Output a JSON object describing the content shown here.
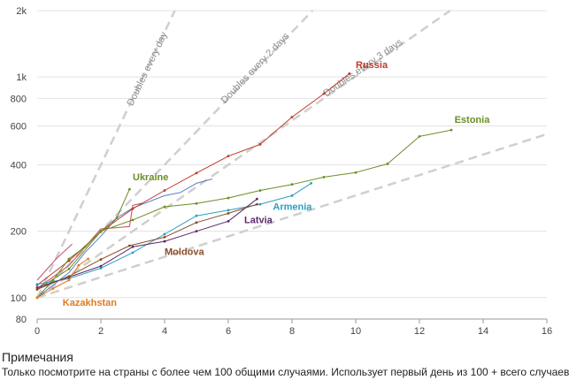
{
  "chart_data": {
    "type": "line",
    "y_scale": "log",
    "xlim": [
      0,
      16
    ],
    "ylim": [
      80,
      2000
    ],
    "x_ticks": [
      0,
      2,
      4,
      6,
      8,
      10,
      12,
      14,
      16
    ],
    "y_ticks": [
      {
        "value": 80,
        "label": "80"
      },
      {
        "value": 100,
        "label": "100"
      },
      {
        "value": 200,
        "label": "200"
      },
      {
        "value": 400,
        "label": "400"
      },
      {
        "value": 600,
        "label": "600"
      },
      {
        "value": 800,
        "label": "800"
      },
      {
        "value": 1000,
        "label": "1k"
      },
      {
        "value": 2000,
        "label": "2k"
      }
    ],
    "grid": "horizontal",
    "reference_lines": [
      {
        "label": "Doubles every day",
        "doubling_days": 1
      },
      {
        "label": "Doubles every 2 days",
        "doubling_days": 2
      },
      {
        "label": "Doubles every 3 days",
        "doubling_days": 3
      },
      {
        "label": "",
        "doubling_days": 6.5
      }
    ],
    "series": [
      {
        "name": "Russia",
        "color": "#c0392b",
        "label_x": 10.0,
        "label_y": 1100,
        "x": [
          0,
          1,
          2,
          3,
          4,
          5,
          6,
          7,
          8,
          9,
          9.8
        ],
        "y": [
          114,
          147,
          199,
          253,
          306,
          367,
          438,
          495,
          658,
          840,
          1036
        ]
      },
      {
        "name": "Estonia",
        "color": "#6b8e23",
        "label_x": 13.1,
        "label_y": 620,
        "x": [
          0,
          1,
          2,
          3,
          4,
          5,
          6,
          7,
          8,
          9,
          10,
          11,
          12,
          13
        ],
        "y": [
          109,
          135,
          200,
          225,
          258,
          267,
          283,
          306,
          326,
          352,
          369,
          404,
          538,
          575
        ]
      },
      {
        "name": "Ukraine",
        "color": "#6b8e23",
        "label_x": 3.0,
        "label_y": 340,
        "x": [
          0,
          0.5,
          1,
          1.5,
          2,
          2.5,
          2.9
        ],
        "y": [
          100,
          120,
          150,
          170,
          200,
          230,
          310
        ]
      },
      {
        "name": "Armenia",
        "color": "#2a9fc0",
        "label_x": 7.4,
        "label_y": 250,
        "x": [
          0,
          1,
          2,
          3,
          4,
          5,
          6,
          7,
          8,
          8.6
        ],
        "y": [
          115,
          122,
          136,
          160,
          194,
          235,
          249,
          265,
          290,
          330
        ]
      },
      {
        "name": "Latvia",
        "color": "#5b2a6b",
        "label_x": 6.5,
        "label_y": 218,
        "x": [
          0,
          1,
          2,
          3,
          4,
          5,
          6,
          6.9
        ],
        "y": [
          111,
          124,
          139,
          170,
          180,
          200,
          222,
          280
        ]
      },
      {
        "name": "Moldova",
        "color": "#8a4b2a",
        "label_x": 4.0,
        "label_y": 156,
        "x": [
          0,
          1,
          2,
          2.9,
          4,
          5,
          6,
          6.9
        ],
        "y": [
          109,
          125,
          149,
          172,
          188,
          219,
          241,
          265
        ]
      },
      {
        "name": "Kazakhstan",
        "color": "#e07b20",
        "label_x": 0.8,
        "label_y": 92,
        "x": [
          0,
          0.5,
          1,
          1.3,
          1.6
        ],
        "y": [
          100,
          110,
          120,
          140,
          150
        ]
      }
    ],
    "extra_lines": [
      {
        "color": "#5b7fc0",
        "x": [
          0,
          1,
          1.5,
          2,
          2.5,
          3,
          4,
          4.5,
          5,
          5.5
        ],
        "y": [
          100,
          130,
          160,
          190,
          230,
          255,
          290,
          300,
          330,
          345
        ]
      },
      {
        "color": "#c05050",
        "x": [
          0,
          1,
          2,
          2.9,
          3,
          3.3
        ],
        "y": [
          110,
          140,
          205,
          210,
          262,
          268
        ]
      },
      {
        "color": "#c05070",
        "x": [
          0,
          0.6,
          1.1
        ],
        "y": [
          120,
          150,
          175
        ]
      }
    ]
  },
  "notes": {
    "title": "Примечания",
    "text": "Только посмотрите на страны с более чем 100 общими случаями. Использует первый день из 100 + всего случаев"
  }
}
